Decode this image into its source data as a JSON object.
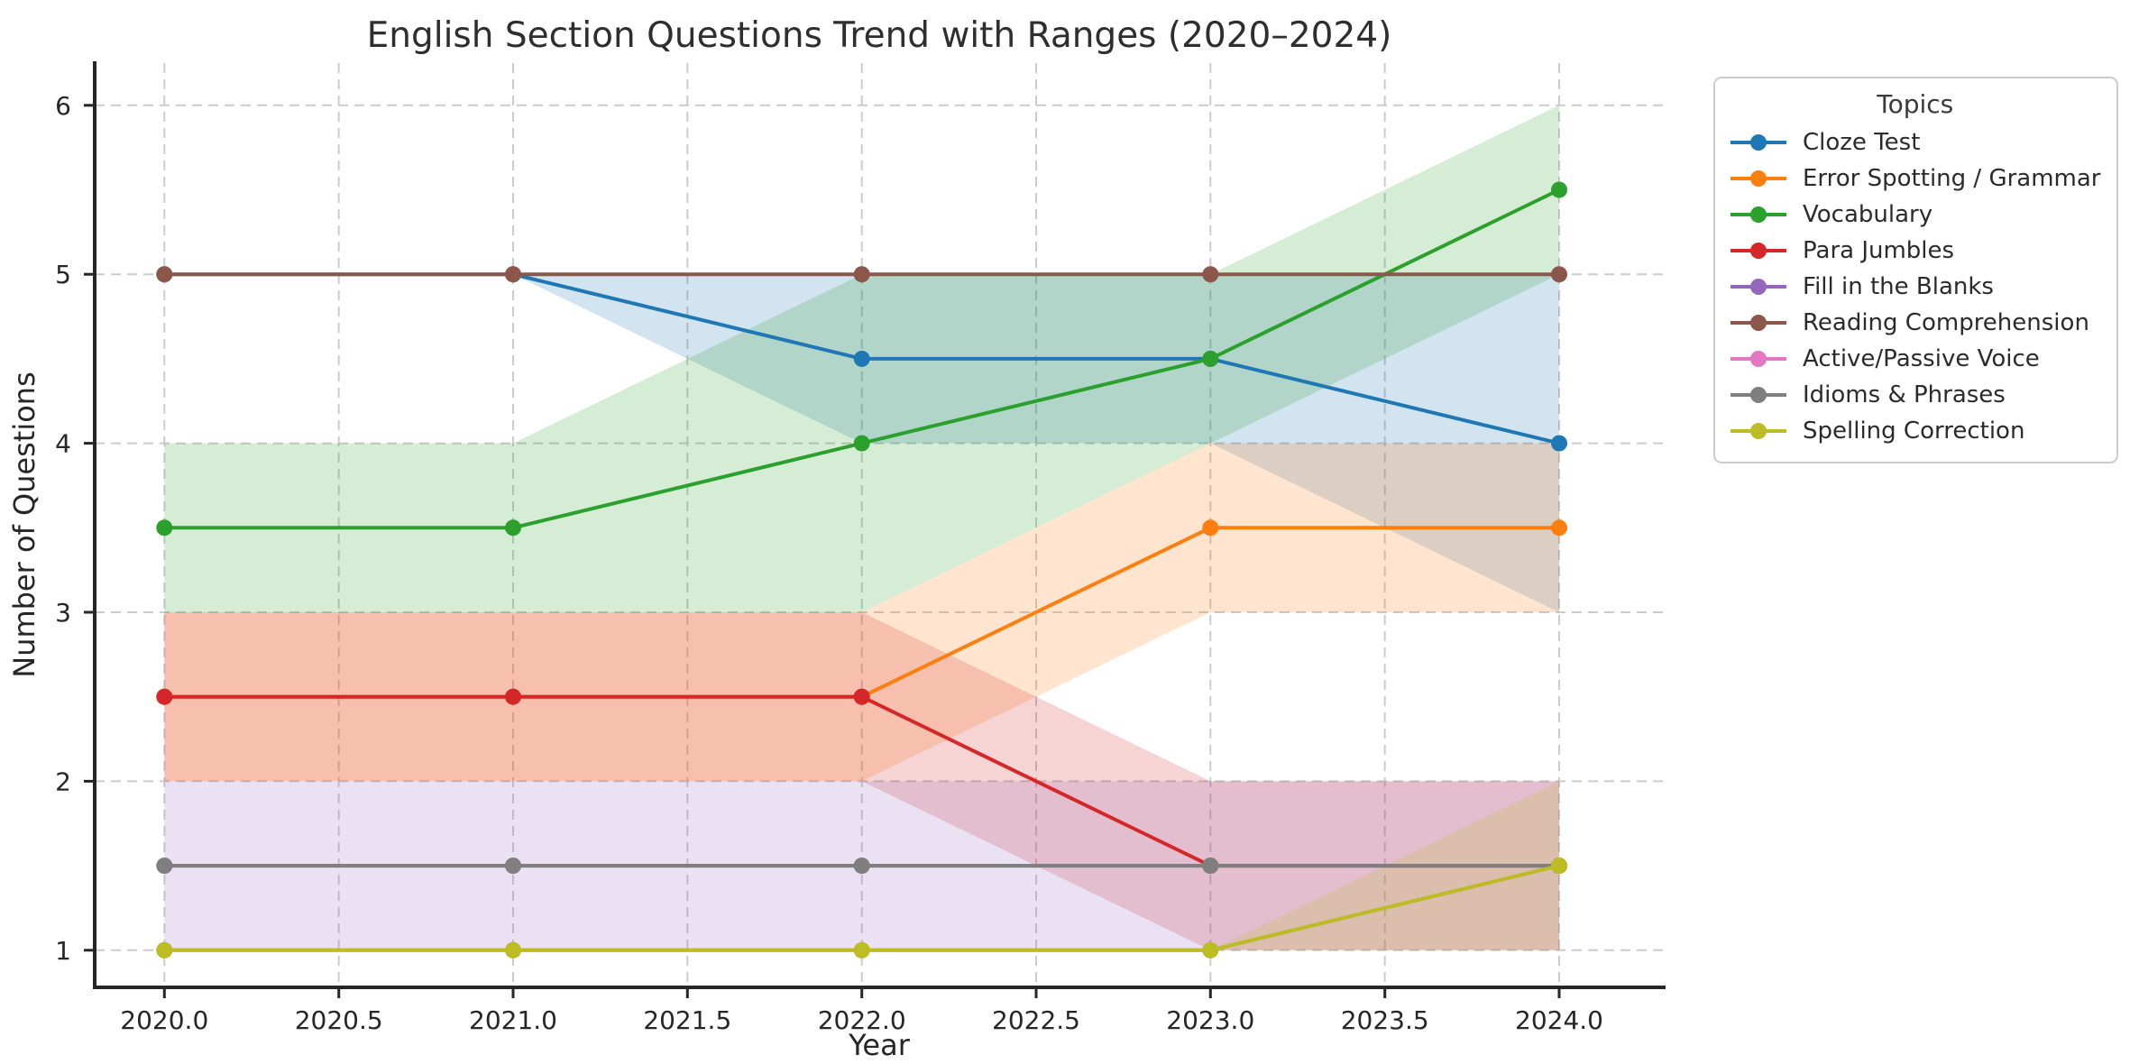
{
  "chart_data": {
    "type": "line",
    "title": "English Section Questions Trend with Ranges (2020–2024)",
    "xlabel": "Year",
    "ylabel": "Number of Questions",
    "legend_title": "Topics",
    "legend_position": "outside-upper-right",
    "grid": true,
    "band_opacity": 0.2,
    "x": [
      2020,
      2021,
      2022,
      2023,
      2024
    ],
    "xlim": [
      2019.8,
      2024.3
    ],
    "ylim": [
      0.78,
      6.25
    ],
    "x_tick_values": [
      2020,
      2020.5,
      2021,
      2021.5,
      2022,
      2022.5,
      2023,
      2023.5,
      2024
    ],
    "x_tick_labels": [
      "2020.0",
      "2020.5",
      "2021.0",
      "2021.5",
      "2022.0",
      "2022.5",
      "2023.0",
      "2023.5",
      "2024.0"
    ],
    "y_tick_values": [
      1,
      2,
      3,
      4,
      5,
      6
    ],
    "y_tick_labels": [
      "1",
      "2",
      "3",
      "4",
      "5",
      "6"
    ],
    "series": [
      {
        "name": "Cloze Test",
        "color": "#1f77b4",
        "values": [
          5,
          5,
          4.5,
          4.5,
          4
        ],
        "range_low": [
          5,
          5,
          4,
          4,
          3
        ],
        "range_high": [
          5,
          5,
          5,
          5,
          5
        ]
      },
      {
        "name": "Error Spotting / Grammar",
        "color": "#ff7f0e",
        "values": [
          2.5,
          2.5,
          2.5,
          3.5,
          3.5
        ],
        "range_low": [
          2,
          2,
          2,
          3,
          3
        ],
        "range_high": [
          3,
          3,
          3,
          4,
          4
        ]
      },
      {
        "name": "Vocabulary",
        "color": "#2ca02c",
        "values": [
          3.5,
          3.5,
          4,
          4.5,
          5.5
        ],
        "range_low": [
          3,
          3,
          3,
          4,
          5
        ],
        "range_high": [
          4,
          4,
          5,
          5,
          6
        ]
      },
      {
        "name": "Para Jumbles",
        "color": "#d62728",
        "values": [
          2.5,
          2.5,
          2.5,
          1.5,
          1.5
        ],
        "range_low": [
          2,
          2,
          2,
          1,
          1
        ],
        "range_high": [
          3,
          3,
          3,
          2,
          2
        ]
      },
      {
        "name": "Fill in the Blanks",
        "color": "#9467bd",
        "values": [
          1.5,
          1.5,
          1.5,
          1.5,
          1.5
        ],
        "range_low": [
          1,
          1,
          1,
          1,
          1
        ],
        "range_high": [
          2,
          2,
          2,
          2,
          2
        ]
      },
      {
        "name": "Reading Comprehension",
        "color": "#8c564b",
        "values": [
          5,
          5,
          5,
          5,
          5
        ],
        "range_low": [
          5,
          5,
          5,
          5,
          5
        ],
        "range_high": [
          5,
          5,
          5,
          5,
          5
        ]
      },
      {
        "name": "Active/Passive Voice",
        "color": "#e377c2",
        "values": [
          1,
          1,
          1,
          1,
          1.5
        ],
        "range_low": [
          1,
          1,
          1,
          1,
          1.5
        ],
        "range_high": [
          1,
          1,
          1,
          1,
          1.5
        ]
      },
      {
        "name": "Idioms & Phrases",
        "color": "#7f7f7f",
        "values": [
          1.5,
          1.5,
          1.5,
          1.5,
          1.5
        ],
        "range_low": [
          1.5,
          1.5,
          1.5,
          1.5,
          1.5
        ],
        "range_high": [
          1.5,
          1.5,
          1.5,
          1.5,
          1.5
        ]
      },
      {
        "name": "Spelling Correction",
        "color": "#bcbd22",
        "values": [
          1,
          1,
          1,
          1,
          1.5
        ],
        "range_low": [
          1,
          1,
          1,
          1,
          1
        ],
        "range_high": [
          1,
          1,
          1,
          1,
          2
        ]
      }
    ]
  },
  "style": {
    "background": "#ffffff",
    "axis_color": "#262626",
    "grid_color": "#cccccc",
    "text_color": "#262626",
    "title_color": "#2e2e2e",
    "legend_border_color": "#cccccc"
  }
}
